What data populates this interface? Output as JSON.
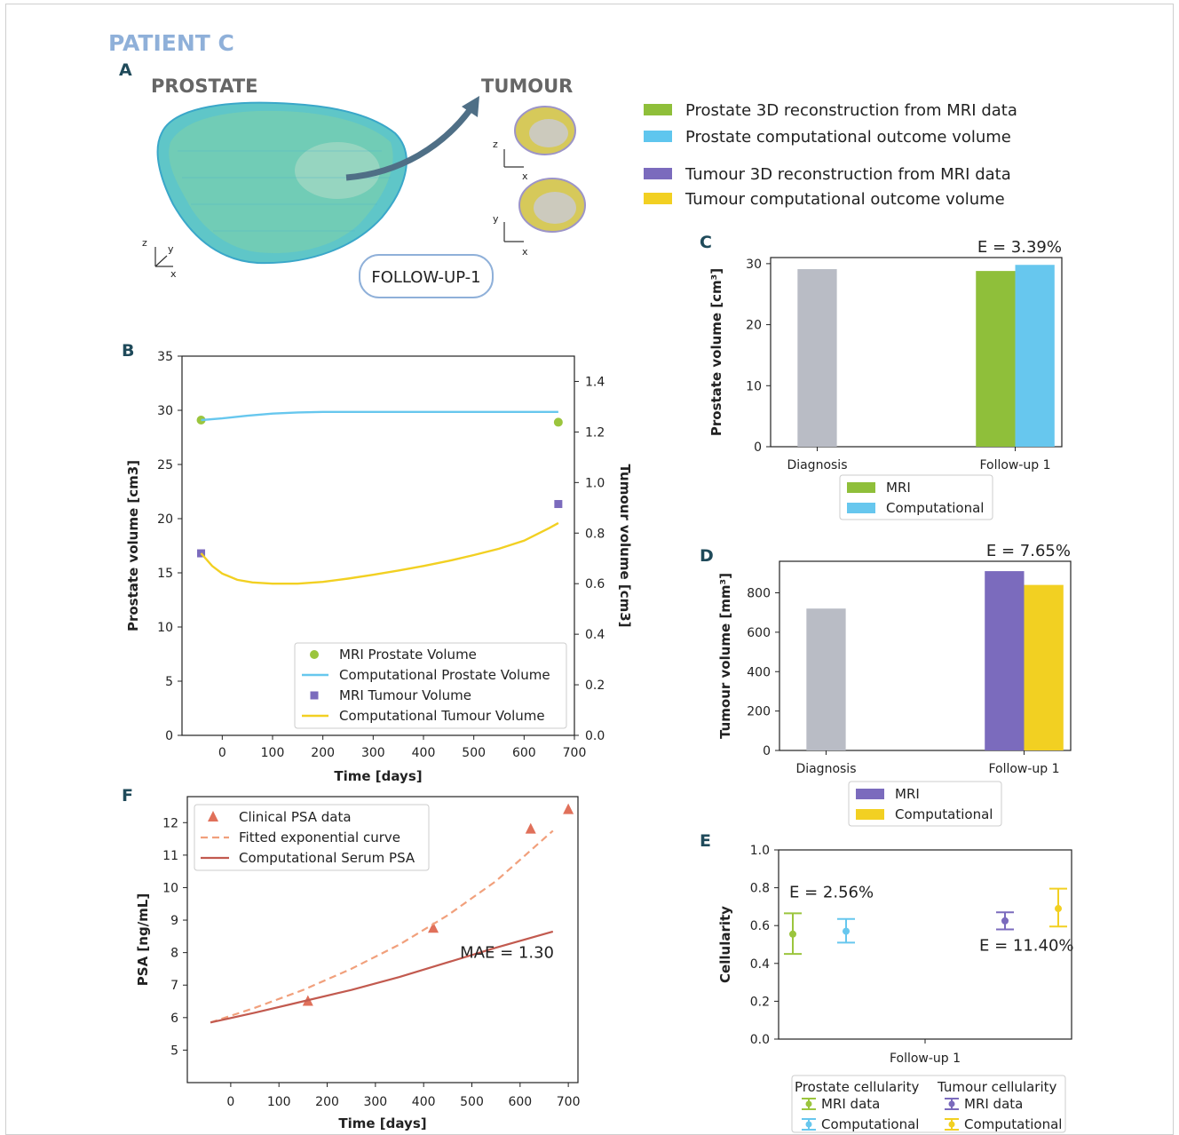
{
  "figure": {
    "title": "PATIENT C",
    "panel_a": {
      "label": "A",
      "prostate_title": "PROSTATE",
      "tumour_title": "TUMOUR",
      "followup_badge": "FOLLOW-UP-1",
      "axes_glyphs": {
        "z": "z",
        "y": "y",
        "x": "x"
      },
      "legend": [
        {
          "label": "Prostate 3D reconstruction from MRI data",
          "color": "#8fbf3a"
        },
        {
          "label": "Prostate computational outcome volume",
          "color": "#5fc6ee"
        },
        {
          "label": "Tumour 3D reconstruction from MRI data",
          "color": "#7b6bbd"
        },
        {
          "label": "Tumour computational outcome volume",
          "color": "#f2d022"
        }
      ]
    }
  },
  "chart_data": [
    {
      "panel": "B",
      "type": "line",
      "xlabel": "Time [days]",
      "ylabel": "Prostate volume [cm3]",
      "y2label": "Tumour volume [cm3]",
      "xlim": [
        -80,
        700
      ],
      "ylim": [
        0,
        35
      ],
      "y2lim": [
        0,
        1.5
      ],
      "xticks": [
        0,
        100,
        200,
        300,
        400,
        500,
        600,
        700
      ],
      "yticks": [
        0,
        5,
        10,
        15,
        20,
        25,
        30,
        35
      ],
      "y2ticks": [
        0.0,
        0.2,
        0.4,
        0.6,
        0.8,
        1.0,
        1.2,
        1.4
      ],
      "series": [
        {
          "name": "MRI Prostate Volume",
          "kind": "scatter",
          "axis": "left",
          "color": "#9bc53d",
          "marker": "circle",
          "x": [
            -42,
            668
          ],
          "y": [
            29.1,
            28.9
          ]
        },
        {
          "name": "Computational Prostate Volume",
          "kind": "line",
          "axis": "left",
          "color": "#67c7ee",
          "x": [
            -42,
            0,
            50,
            100,
            150,
            200,
            300,
            400,
            500,
            600,
            668
          ],
          "y": [
            29.1,
            29.25,
            29.5,
            29.7,
            29.8,
            29.85,
            29.85,
            29.85,
            29.85,
            29.85,
            29.85
          ]
        },
        {
          "name": "MRI Tumour Volume",
          "kind": "scatter",
          "axis": "right",
          "color": "#7b6bbd",
          "marker": "square",
          "x": [
            -42,
            668
          ],
          "y": [
            0.72,
            0.915
          ]
        },
        {
          "name": "Computational Tumour Volume",
          "kind": "line",
          "axis": "right",
          "color": "#f2d022",
          "x": [
            -42,
            -20,
            0,
            30,
            60,
            100,
            150,
            200,
            250,
            300,
            350,
            400,
            450,
            500,
            550,
            600,
            650,
            668
          ],
          "y": [
            0.72,
            0.67,
            0.64,
            0.615,
            0.605,
            0.6,
            0.6,
            0.607,
            0.62,
            0.635,
            0.652,
            0.67,
            0.69,
            0.713,
            0.738,
            0.77,
            0.82,
            0.84
          ]
        }
      ],
      "legend_position": "lower right"
    },
    {
      "panel": "C",
      "type": "bar",
      "categories": [
        "Diagnosis",
        "Follow-up 1"
      ],
      "ylabel": "Prostate volume [cm³]",
      "ylim": [
        0,
        31
      ],
      "yticks": [
        0,
        10,
        20,
        30
      ],
      "annotation": "E = 3.39%",
      "series": [
        {
          "name": "MRI",
          "color": "#8fbf3a",
          "values": [
            null,
            28.8
          ]
        },
        {
          "name": "Computational",
          "color": "#67c7ee",
          "values": [
            null,
            29.8
          ]
        }
      ],
      "diagnosis_value": 29.1,
      "diagnosis_color": "#b9bcc5"
    },
    {
      "panel": "D",
      "type": "bar",
      "categories": [
        "Diagnosis",
        "Follow-up 1"
      ],
      "ylabel": "Tumour volume [mm³]",
      "ylim": [
        0,
        960
      ],
      "yticks": [
        0,
        200,
        400,
        600,
        800
      ],
      "annotation": "E = 7.65%",
      "series": [
        {
          "name": "MRI",
          "color": "#7b6bbd",
          "values": [
            null,
            910
          ]
        },
        {
          "name": "Computational",
          "color": "#f2d022",
          "values": [
            null,
            840
          ]
        }
      ],
      "diagnosis_value": 720,
      "diagnosis_color": "#b9bcc5"
    },
    {
      "panel": "E",
      "type": "scatter",
      "xlabel": "Follow-up 1",
      "ylabel": "Cellularity",
      "ylim": [
        0,
        1.0
      ],
      "yticks": [
        0.0,
        0.2,
        0.4,
        0.6,
        0.8,
        1.0
      ],
      "annotations": [
        "E = 2.56%",
        "E = 11.40%"
      ],
      "legend_groups": [
        {
          "title": "Prostate cellularity",
          "items": [
            {
              "name": "MRI data",
              "color": "#9bc53d"
            },
            {
              "name": "Computational",
              "color": "#67c7ee"
            }
          ]
        },
        {
          "title": "Tumour cellularity",
          "items": [
            {
              "name": "MRI data",
              "color": "#7b6bbd"
            },
            {
              "name": "Computational",
              "color": "#f2d022"
            }
          ]
        }
      ],
      "points": [
        {
          "group": "Prostate cellularity",
          "name": "MRI data",
          "color": "#9bc53d",
          "y": 0.555,
          "lo": 0.45,
          "hi": 0.665
        },
        {
          "group": "Prostate cellularity",
          "name": "Computational",
          "color": "#67c7ee",
          "y": 0.57,
          "lo": 0.51,
          "hi": 0.635
        },
        {
          "group": "Tumour cellularity",
          "name": "MRI data",
          "color": "#7b6bbd",
          "y": 0.625,
          "lo": 0.58,
          "hi": 0.67
        },
        {
          "group": "Tumour cellularity",
          "name": "Computational",
          "color": "#f2d022",
          "y": 0.69,
          "lo": 0.595,
          "hi": 0.795
        }
      ]
    },
    {
      "panel": "F",
      "type": "line",
      "xlabel": "Time [days]",
      "ylabel": "PSA [ng/mL]",
      "xlim": [
        -90,
        720
      ],
      "ylim": [
        4.0,
        12.8
      ],
      "xticks": [
        0,
        100,
        200,
        300,
        400,
        500,
        600,
        700
      ],
      "yticks": [
        5,
        6,
        7,
        8,
        9,
        10,
        11,
        12
      ],
      "annotation": "MAE = 1.30",
      "series": [
        {
          "name": "Clinical PSA data",
          "kind": "scatter",
          "marker": "triangle",
          "color": "#e0705a",
          "x": [
            160,
            420,
            622,
            700
          ],
          "y": [
            6.5,
            8.75,
            11.8,
            12.4
          ]
        },
        {
          "name": "Fitted exponential curve",
          "kind": "dashed",
          "color": "#f1a07c",
          "x": [
            -42,
            50,
            150,
            250,
            350,
            450,
            550,
            668
          ],
          "y": [
            5.85,
            6.3,
            6.85,
            7.5,
            8.25,
            9.15,
            10.2,
            11.75
          ]
        },
        {
          "name": "Computational Serum PSA",
          "kind": "line",
          "color": "#c25a4f",
          "x": [
            -42,
            50,
            150,
            250,
            350,
            450,
            550,
            668
          ],
          "y": [
            5.85,
            6.15,
            6.5,
            6.85,
            7.25,
            7.7,
            8.15,
            8.65
          ]
        }
      ],
      "legend_position": "upper left"
    }
  ]
}
